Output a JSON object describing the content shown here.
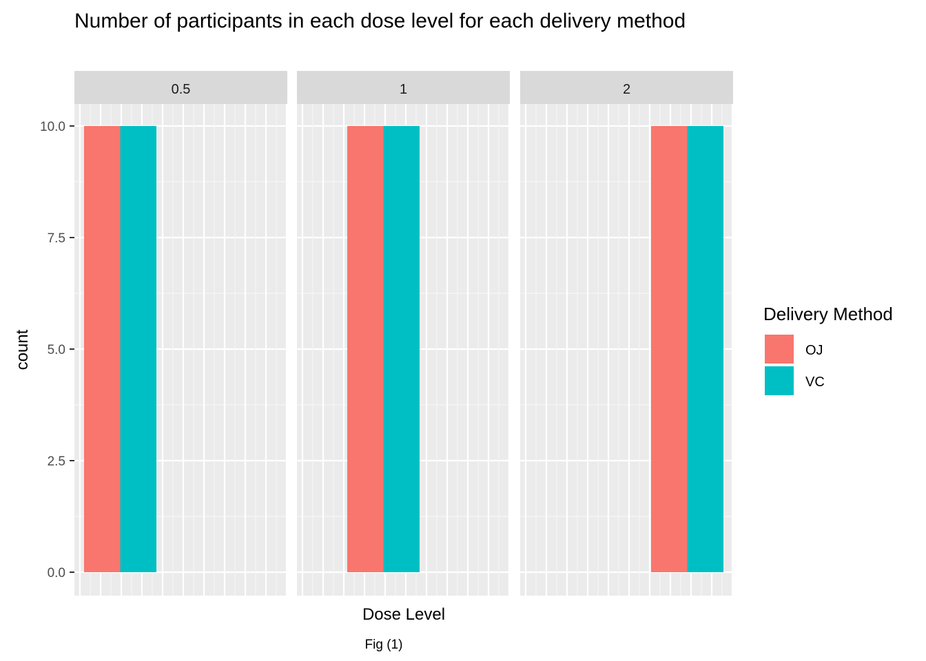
{
  "chart_data": {
    "type": "bar",
    "title": "Number of participants in each dose level for each delivery method",
    "xlabel": "Dose Level",
    "ylabel": "count",
    "caption": "Fig (1)",
    "facets": [
      "0.5",
      "1",
      "2"
    ],
    "yticks": [
      "0.0",
      "2.5",
      "5.0",
      "7.5",
      "10.0"
    ],
    "ylim": [
      0,
      10.5
    ],
    "grid": true,
    "legend": {
      "title": "Delivery Method",
      "placement": "right",
      "entries": [
        "OJ",
        "VC"
      ]
    },
    "series": [
      {
        "name": "OJ",
        "color": "#F8766D",
        "values": [
          10,
          10,
          10
        ]
      },
      {
        "name": "VC",
        "color": "#00BFC4",
        "values": [
          10,
          10,
          10
        ]
      }
    ]
  }
}
